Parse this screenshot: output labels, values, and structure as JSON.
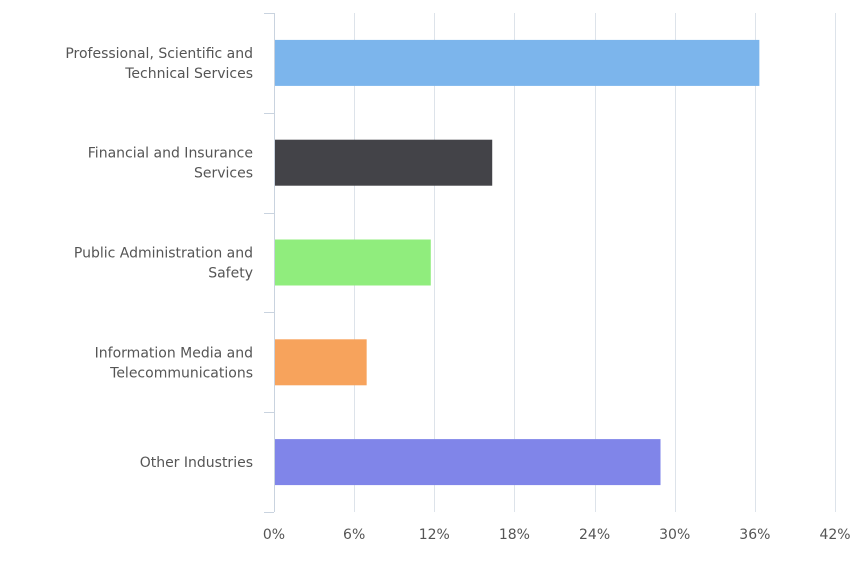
{
  "chart_data": {
    "type": "bar",
    "orientation": "horizontal",
    "title": "",
    "xlabel": "",
    "ylabel": "",
    "categories": [
      "Professional, Scientific and Technical Services",
      "Financial and Insurance Services",
      "Public Administration and Safety",
      "Information Media and Telecommunications",
      "Other Industries"
    ],
    "category_label_lines": [
      [
        "Professional, Scientific and",
        "Technical Services"
      ],
      [
        "Financial and Insurance",
        "Services"
      ],
      [
        "Public Administration and",
        "Safety"
      ],
      [
        "Information Media and",
        "Telecommunications"
      ],
      [
        "Other Industries"
      ]
    ],
    "values": [
      36.3,
      16.3,
      11.7,
      6.9,
      28.9
    ],
    "colors": [
      "#7cb5ec",
      "#434348",
      "#90ed7d",
      "#f7a35c",
      "#8085e9"
    ],
    "xlim": [
      0,
      42
    ],
    "xticks": [
      0,
      6,
      12,
      18,
      24,
      30,
      36,
      42
    ],
    "xtick_labels": [
      "0%",
      "6%",
      "12%",
      "18%",
      "24%",
      "30%",
      "36%",
      "42%"
    ],
    "grid": true,
    "legend": "none"
  }
}
